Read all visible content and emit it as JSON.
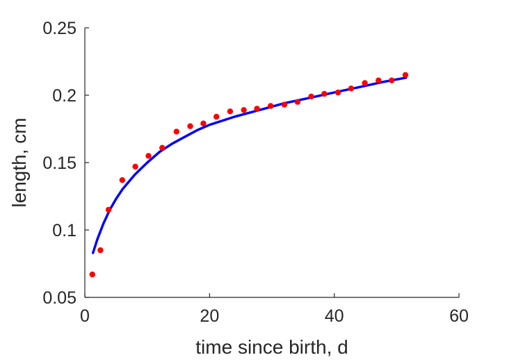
{
  "chart_data": {
    "type": "scatter",
    "xlabel": "time since birth, d",
    "ylabel": "length, cm",
    "xlim": [
      0,
      60
    ],
    "ylim": [
      0.05,
      0.25
    ],
    "xticks": [
      0,
      20,
      40,
      60
    ],
    "yticks": [
      0.05,
      0.1,
      0.15,
      0.2,
      0.25
    ],
    "xtick_labels": [
      "0",
      "20",
      "40",
      "60"
    ],
    "ytick_labels": [
      "0.05",
      "0.1",
      "0.15",
      "0.2",
      "0.25"
    ],
    "grid": false,
    "box": "left and bottom axes only",
    "series": [
      {
        "kind": "points",
        "color": "#ff0000",
        "x": [
          1.2,
          2.5,
          3.8,
          6.0,
          8.1,
          10.2,
          12.4,
          14.7,
          16.9,
          19.0,
          21.1,
          23.3,
          25.5,
          27.6,
          29.8,
          32.0,
          34.1,
          36.3,
          38.4,
          40.6,
          42.7,
          44.9,
          47.1,
          49.2,
          51.4
        ],
        "y": [
          0.067,
          0.085,
          0.115,
          0.137,
          0.147,
          0.155,
          0.161,
          0.173,
          0.177,
          0.179,
          0.184,
          0.188,
          0.189,
          0.19,
          0.192,
          0.193,
          0.195,
          0.199,
          0.201,
          0.202,
          0.205,
          0.209,
          0.211,
          0.211,
          0.215
        ]
      },
      {
        "kind": "line",
        "color": "#0000ff",
        "x": [
          1.3,
          2,
          3,
          4,
          5,
          6,
          8,
          10,
          12,
          14,
          16,
          18,
          20,
          24,
          28,
          32,
          36,
          40,
          44,
          48,
          51.5
        ],
        "y": [
          0.083,
          0.093,
          0.105,
          0.115,
          0.123,
          0.13,
          0.141,
          0.15,
          0.158,
          0.164,
          0.169,
          0.174,
          0.178,
          0.184,
          0.189,
          0.194,
          0.198,
          0.202,
          0.206,
          0.21,
          0.213
        ]
      }
    ]
  }
}
